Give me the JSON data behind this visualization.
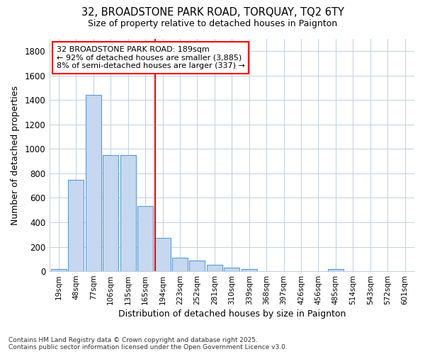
{
  "title1": "32, BROADSTONE PARK ROAD, TORQUAY, TQ2 6TY",
  "title2": "Size of property relative to detached houses in Paignton",
  "xlabel": "Distribution of detached houses by size in Paignton",
  "ylabel": "Number of detached properties",
  "categories": [
    "19sqm",
    "48sqm",
    "77sqm",
    "106sqm",
    "135sqm",
    "165sqm",
    "194sqm",
    "223sqm",
    "252sqm",
    "281sqm",
    "310sqm",
    "339sqm",
    "368sqm",
    "397sqm",
    "426sqm",
    "456sqm",
    "485sqm",
    "514sqm",
    "543sqm",
    "572sqm",
    "601sqm"
  ],
  "values": [
    20,
    750,
    1440,
    950,
    950,
    535,
    275,
    110,
    90,
    50,
    28,
    20,
    0,
    0,
    0,
    0,
    15,
    0,
    0,
    0,
    0
  ],
  "bar_color": "#c5d8f0",
  "bar_edge_color": "#5b9bd5",
  "grid_color": "#c0d0e0",
  "vline_color": "red",
  "annotation_text": "32 BROADSTONE PARK ROAD: 189sqm\n← 92% of detached houses are smaller (3,885)\n8% of semi-detached houses are larger (337) →",
  "annotation_box_color": "white",
  "annotation_box_edge": "red",
  "ylim": [
    0,
    1900
  ],
  "yticks": [
    0,
    200,
    400,
    600,
    800,
    1000,
    1200,
    1400,
    1600,
    1800
  ],
  "footer": "Contains HM Land Registry data © Crown copyright and database right 2025.\nContains public sector information licensed under the Open Government Licence v3.0.",
  "bg_color": "#ffffff"
}
